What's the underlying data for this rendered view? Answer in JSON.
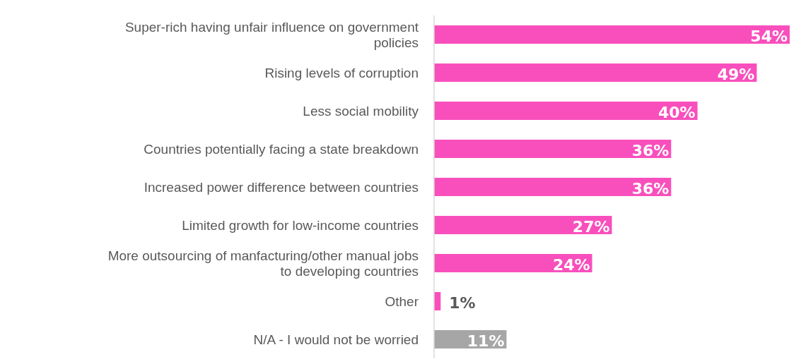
{
  "chart_data": {
    "type": "bar",
    "orientation": "horizontal",
    "categories": [
      "Super-rich having unfair influence on government policies",
      "Rising levels of corruption",
      "Less social mobility",
      "Countries potentially facing a state breakdown",
      "Increased power difference between countries",
      "Limited growth for low-income countries",
      "More outsourcing of manfacturing/other manual jobs to developing countries",
      "Other",
      "N/A - I would not be worried"
    ],
    "values": [
      54,
      49,
      40,
      36,
      36,
      27,
      24,
      1,
      11
    ],
    "colors": [
      "#f94fbd",
      "#f94fbd",
      "#f94fbd",
      "#f94fbd",
      "#f94fbd",
      "#f94fbd",
      "#f94fbd",
      "#f94fbd",
      "#a6a6a6"
    ],
    "value_labels": [
      "54%",
      "49%",
      "40%",
      "36%",
      "36%",
      "27%",
      "24%",
      "1%",
      "11%"
    ]
  }
}
